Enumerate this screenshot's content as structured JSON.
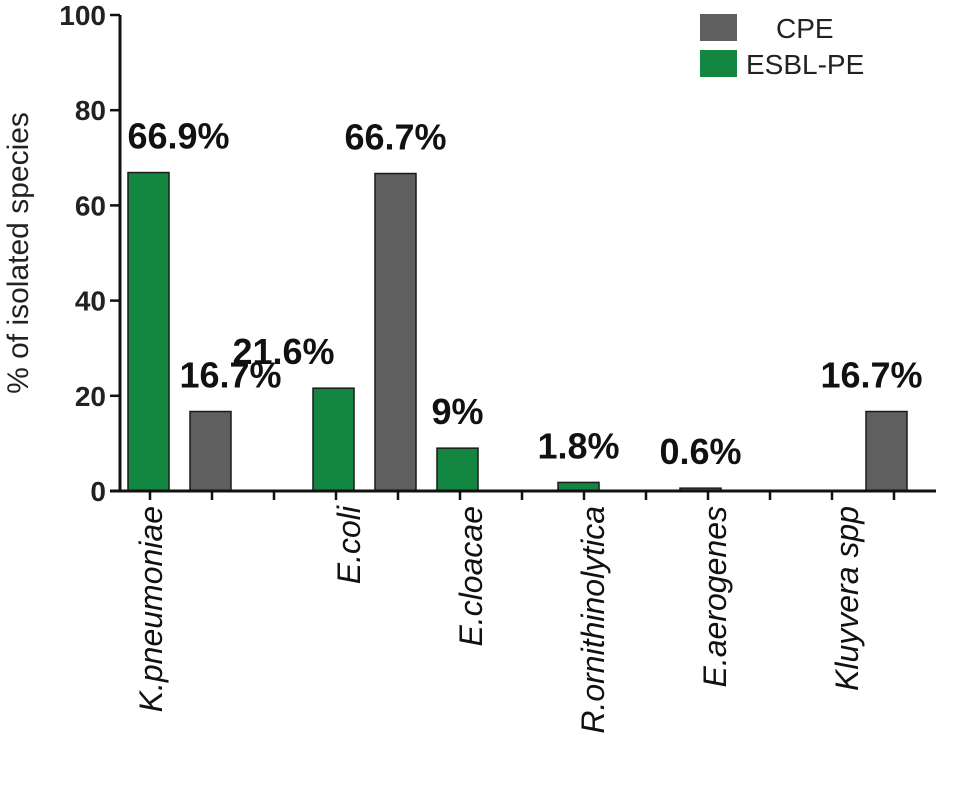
{
  "chart_data": {
    "type": "bar",
    "title": "",
    "xlabel": "",
    "ylabel": "% of isolated species",
    "ylim": [
      0,
      100
    ],
    "yticks": [
      0,
      20,
      40,
      60,
      80,
      100
    ],
    "grid": false,
    "legend_position": "top-right",
    "categories": [
      "K.pneumoniae",
      "E.coli",
      "E.cloacae",
      "R.ornithinolytica",
      "E.aerogenes",
      "Kluyvera spp"
    ],
    "series": [
      {
        "name": "ESBL-PE",
        "color": "#138641",
        "values": [
          66.9,
          21.6,
          9,
          1.8,
          0.6,
          null
        ],
        "labels": [
          "66.9%",
          "21.6%",
          "9%",
          "1.8%",
          "0.6%",
          null
        ]
      },
      {
        "name": "CPE",
        "color": "#5f5f5f",
        "values": [
          16.7,
          66.7,
          null,
          null,
          null,
          16.7
        ],
        "labels": [
          "16.7%",
          "66.7%",
          null,
          null,
          null,
          "16.7%"
        ]
      }
    ],
    "legend": [
      "CPE",
      "ESBL-PE"
    ]
  }
}
